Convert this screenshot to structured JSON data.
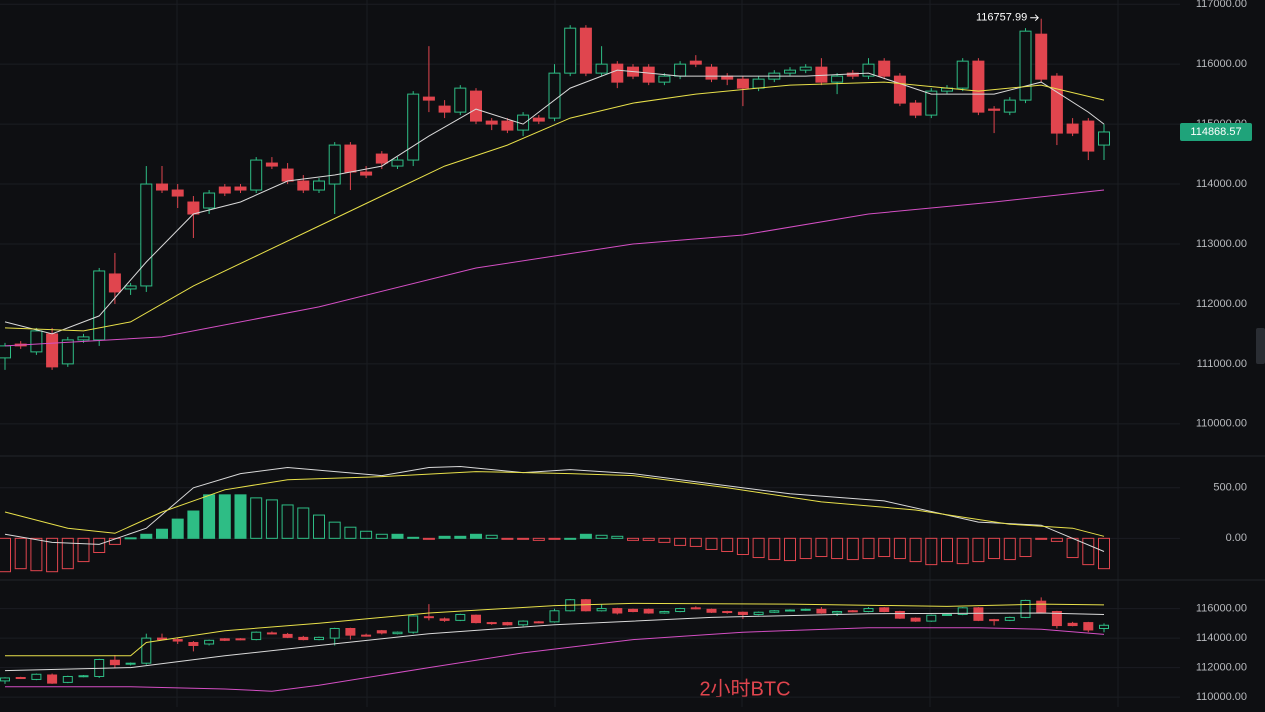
{
  "chart_data": [
    {
      "type": "candlestick",
      "ylim": [
        109480,
        117070
      ],
      "up_color": "#2ebd85",
      "down_color": "#e0454e",
      "grid": true,
      "yticks": [
        {
          "value": 117000,
          "label": "117000.00"
        },
        {
          "value": 116000,
          "label": "116000.00"
        },
        {
          "value": 115000,
          "label": "115000.00"
        },
        {
          "value": 114000,
          "label": "114000.00"
        },
        {
          "value": 113000,
          "label": "113000.00"
        },
        {
          "value": 112000,
          "label": "112000.00"
        },
        {
          "value": 111000,
          "label": "111000.00"
        },
        {
          "value": 110000,
          "label": "110000.00"
        }
      ],
      "high_label": {
        "value": 116757.99,
        "label": "116757.99"
      },
      "last_price": {
        "value": 114868.57,
        "label": "114868.57"
      },
      "candles": [
        {
          "o": 111100,
          "h": 111350,
          "l": 110900,
          "c": 111300
        },
        {
          "o": 111330,
          "h": 111380,
          "l": 111250,
          "c": 111300
        },
        {
          "o": 111200,
          "h": 111600,
          "l": 111150,
          "c": 111550
        },
        {
          "o": 111500,
          "h": 111600,
          "l": 110900,
          "c": 110950
        },
        {
          "o": 111000,
          "h": 111450,
          "l": 110950,
          "c": 111400
        },
        {
          "o": 111400,
          "h": 111500,
          "l": 111350,
          "c": 111450
        },
        {
          "o": 111400,
          "h": 112600,
          "l": 111300,
          "c": 112550
        },
        {
          "o": 112500,
          "h": 112850,
          "l": 112000,
          "c": 112200
        },
        {
          "o": 112250,
          "h": 112350,
          "l": 112150,
          "c": 112300
        },
        {
          "o": 112300,
          "h": 114300,
          "l": 112200,
          "c": 114000
        },
        {
          "o": 114000,
          "h": 114300,
          "l": 113850,
          "c": 113900
        },
        {
          "o": 113900,
          "h": 114000,
          "l": 113600,
          "c": 113800
        },
        {
          "o": 113700,
          "h": 113800,
          "l": 113100,
          "c": 113500
        },
        {
          "o": 113600,
          "h": 113900,
          "l": 113500,
          "c": 113850
        },
        {
          "o": 113950,
          "h": 114000,
          "l": 113800,
          "c": 113850
        },
        {
          "o": 113950,
          "h": 114000,
          "l": 113850,
          "c": 113900
        },
        {
          "o": 113900,
          "h": 114450,
          "l": 113850,
          "c": 114400
        },
        {
          "o": 114350,
          "h": 114450,
          "l": 114250,
          "c": 114300
        },
        {
          "o": 114250,
          "h": 114350,
          "l": 114000,
          "c": 114050
        },
        {
          "o": 114050,
          "h": 114150,
          "l": 113850,
          "c": 113900
        },
        {
          "o": 113900,
          "h": 114100,
          "l": 113850,
          "c": 114050
        },
        {
          "o": 114000,
          "h": 114700,
          "l": 113500,
          "c": 114650
        },
        {
          "o": 114650,
          "h": 114700,
          "l": 113900,
          "c": 114200
        },
        {
          "o": 114200,
          "h": 114300,
          "l": 114100,
          "c": 114150
        },
        {
          "o": 114500,
          "h": 114550,
          "l": 114250,
          "c": 114350
        },
        {
          "o": 114300,
          "h": 114450,
          "l": 114250,
          "c": 114400
        },
        {
          "o": 114400,
          "h": 115550,
          "l": 114300,
          "c": 115500
        },
        {
          "o": 115450,
          "h": 116300,
          "l": 115200,
          "c": 115400
        },
        {
          "o": 115300,
          "h": 115400,
          "l": 115100,
          "c": 115200
        },
        {
          "o": 115200,
          "h": 115650,
          "l": 115150,
          "c": 115600
        },
        {
          "o": 115550,
          "h": 115600,
          "l": 115000,
          "c": 115050
        },
        {
          "o": 115050,
          "h": 115100,
          "l": 114900,
          "c": 115000
        },
        {
          "o": 115050,
          "h": 115100,
          "l": 114850,
          "c": 114900
        },
        {
          "o": 114900,
          "h": 115200,
          "l": 114800,
          "c": 115150
        },
        {
          "o": 115100,
          "h": 115150,
          "l": 115000,
          "c": 115050
        },
        {
          "o": 115100,
          "h": 116000,
          "l": 115050,
          "c": 115850
        },
        {
          "o": 115850,
          "h": 116650,
          "l": 115800,
          "c": 116600
        },
        {
          "o": 116600,
          "h": 116650,
          "l": 115800,
          "c": 115850
        },
        {
          "o": 115850,
          "h": 116300,
          "l": 115800,
          "c": 116000
        },
        {
          "o": 116000,
          "h": 116050,
          "l": 115600,
          "c": 115700
        },
        {
          "o": 115950,
          "h": 116000,
          "l": 115750,
          "c": 115800
        },
        {
          "o": 115950,
          "h": 116000,
          "l": 115650,
          "c": 115700
        },
        {
          "o": 115700,
          "h": 115850,
          "l": 115650,
          "c": 115800
        },
        {
          "o": 115800,
          "h": 116050,
          "l": 115750,
          "c": 116000
        },
        {
          "o": 116050,
          "h": 116150,
          "l": 115950,
          "c": 116000
        },
        {
          "o": 115950,
          "h": 116000,
          "l": 115700,
          "c": 115750
        },
        {
          "o": 115800,
          "h": 115850,
          "l": 115650,
          "c": 115750
        },
        {
          "o": 115750,
          "h": 115800,
          "l": 115300,
          "c": 115600
        },
        {
          "o": 115600,
          "h": 115800,
          "l": 115550,
          "c": 115750
        },
        {
          "o": 115750,
          "h": 115900,
          "l": 115700,
          "c": 115850
        },
        {
          "o": 115850,
          "h": 115950,
          "l": 115800,
          "c": 115900
        },
        {
          "o": 115900,
          "h": 116000,
          "l": 115850,
          "c": 115950
        },
        {
          "o": 115950,
          "h": 116100,
          "l": 115650,
          "c": 115700
        },
        {
          "o": 115700,
          "h": 115850,
          "l": 115500,
          "c": 115800
        },
        {
          "o": 115850,
          "h": 115900,
          "l": 115750,
          "c": 115800
        },
        {
          "o": 115800,
          "h": 116100,
          "l": 115750,
          "c": 116000
        },
        {
          "o": 116050,
          "h": 116100,
          "l": 115750,
          "c": 115800
        },
        {
          "o": 115800,
          "h": 115850,
          "l": 115300,
          "c": 115350
        },
        {
          "o": 115350,
          "h": 115400,
          "l": 115100,
          "c": 115150
        },
        {
          "o": 115150,
          "h": 115600,
          "l": 115100,
          "c": 115550
        },
        {
          "o": 115550,
          "h": 115650,
          "l": 115500,
          "c": 115600
        },
        {
          "o": 115600,
          "h": 116100,
          "l": 115550,
          "c": 116050
        },
        {
          "o": 116050,
          "h": 116100,
          "l": 115150,
          "c": 115200
        },
        {
          "o": 115250,
          "h": 115300,
          "l": 114850,
          "c": 115230
        },
        {
          "o": 115200,
          "h": 115450,
          "l": 115150,
          "c": 115400
        },
        {
          "o": 115400,
          "h": 116600,
          "l": 115350,
          "c": 116550
        },
        {
          "o": 116500,
          "h": 116757.99,
          "l": 115700,
          "c": 115750
        },
        {
          "o": 115800,
          "h": 115850,
          "l": 114650,
          "c": 114850
        },
        {
          "o": 115000,
          "h": 115100,
          "l": 114800,
          "c": 114850
        },
        {
          "o": 115050,
          "h": 115100,
          "l": 114400,
          "c": 114550
        },
        {
          "o": 114650,
          "h": 115000,
          "l": 114400,
          "c": 114868.57
        }
      ],
      "series": [
        {
          "color": "#d9d9d9",
          "x": [
            0,
            3,
            6,
            9,
            12,
            15,
            18,
            21,
            24,
            27,
            30,
            33,
            36,
            39,
            43,
            47,
            51,
            55,
            59,
            63,
            66,
            69,
            70
          ],
          "values": [
            111700,
            111500,
            111800,
            112700,
            113500,
            113700,
            114050,
            114150,
            114300,
            114800,
            115250,
            115000,
            115600,
            115900,
            115800,
            115800,
            115800,
            115850,
            115500,
            115500,
            115700,
            115200,
            115000
          ]
        },
        {
          "color": "#e8e04a",
          "x": [
            0,
            5,
            8,
            12,
            16,
            20,
            24,
            28,
            32,
            36,
            40,
            44,
            50,
            56,
            62,
            66,
            70
          ],
          "values": [
            111600,
            111550,
            111700,
            112300,
            112800,
            113300,
            113800,
            114300,
            114650,
            115100,
            115350,
            115500,
            115650,
            115700,
            115550,
            115650,
            115400
          ]
        },
        {
          "color": "#d44fc4",
          "x": [
            0,
            10,
            20,
            30,
            40,
            47,
            55,
            63,
            70
          ],
          "values": [
            111300,
            111450,
            111950,
            112600,
            113000,
            113150,
            113500,
            113700,
            113900
          ]
        }
      ]
    },
    {
      "type": "bar",
      "ylim": [
        -412,
        814
      ],
      "grid": true,
      "yticks": [
        {
          "value": 500,
          "label": "500.00"
        },
        {
          "value": 0,
          "label": "0.00"
        }
      ],
      "values": [
        -330,
        -300,
        -320,
        -330,
        -300,
        -230,
        -140,
        -60,
        5,
        40,
        90,
        190,
        270,
        430,
        430,
        430,
        400,
        380,
        330,
        300,
        230,
        160,
        110,
        70,
        40,
        40,
        10,
        -10,
        20,
        20,
        40,
        30,
        -10,
        -10,
        -20,
        -10,
        0,
        40,
        30,
        20,
        -20,
        -20,
        -40,
        -70,
        -80,
        -110,
        -130,
        -160,
        -190,
        -210,
        -220,
        -200,
        -180,
        -200,
        -210,
        -200,
        -180,
        -200,
        -230,
        -260,
        -230,
        -250,
        -230,
        -200,
        -210,
        -180,
        -10,
        -30,
        -190,
        -260,
        -300
      ],
      "series": [
        {
          "color": "#d9d9d9",
          "x": [
            0,
            3,
            6,
            9,
            12,
            15,
            18,
            24,
            27,
            29,
            33,
            36,
            40,
            44,
            50,
            56,
            62,
            66,
            70
          ],
          "values": [
            40,
            -40,
            -60,
            100,
            500,
            640,
            700,
            620,
            700,
            710,
            650,
            680,
            640,
            560,
            440,
            370,
            160,
            130,
            -130
          ]
        },
        {
          "color": "#e8e04a",
          "x": [
            0,
            4,
            7,
            10,
            14,
            18,
            24,
            30,
            36,
            40,
            46,
            52,
            58,
            64,
            68,
            70
          ],
          "values": [
            260,
            100,
            50,
            260,
            480,
            580,
            610,
            660,
            640,
            620,
            500,
            360,
            280,
            140,
            100,
            20
          ]
        }
      ]
    },
    {
      "type": "candlestick",
      "ylim": [
        109333,
        117867
      ],
      "grid": true,
      "yticks": [
        {
          "value": 116000,
          "label": "116000.00"
        },
        {
          "value": 114000,
          "label": "114000.00"
        },
        {
          "value": 112000,
          "label": "112000.00"
        },
        {
          "value": 110000,
          "label": "110000.00"
        }
      ],
      "series": [
        {
          "color": "#e8e04a",
          "x": [
            0,
            8,
            9,
            14,
            20,
            27,
            35,
            40,
            50,
            60,
            66,
            70
          ],
          "values": [
            112800,
            112800,
            113700,
            114500,
            115000,
            115700,
            116200,
            116350,
            116300,
            116150,
            116300,
            116250
          ]
        },
        {
          "color": "#d9d9d9",
          "x": [
            0,
            8,
            14,
            20,
            27,
            35,
            45,
            55,
            66,
            70
          ],
          "values": [
            111800,
            112000,
            112800,
            113500,
            114300,
            114900,
            115400,
            115650,
            115700,
            115600
          ]
        },
        {
          "color": "#d44fc4",
          "x": [
            0,
            8,
            14,
            17,
            20,
            27,
            33,
            40,
            47,
            55,
            62,
            66,
            70
          ],
          "values": [
            110700,
            110700,
            110550,
            110400,
            110800,
            112000,
            113000,
            113900,
            114400,
            114700,
            114700,
            114600,
            114250
          ]
        }
      ]
    }
  ],
  "watermark": "2小时BTC"
}
